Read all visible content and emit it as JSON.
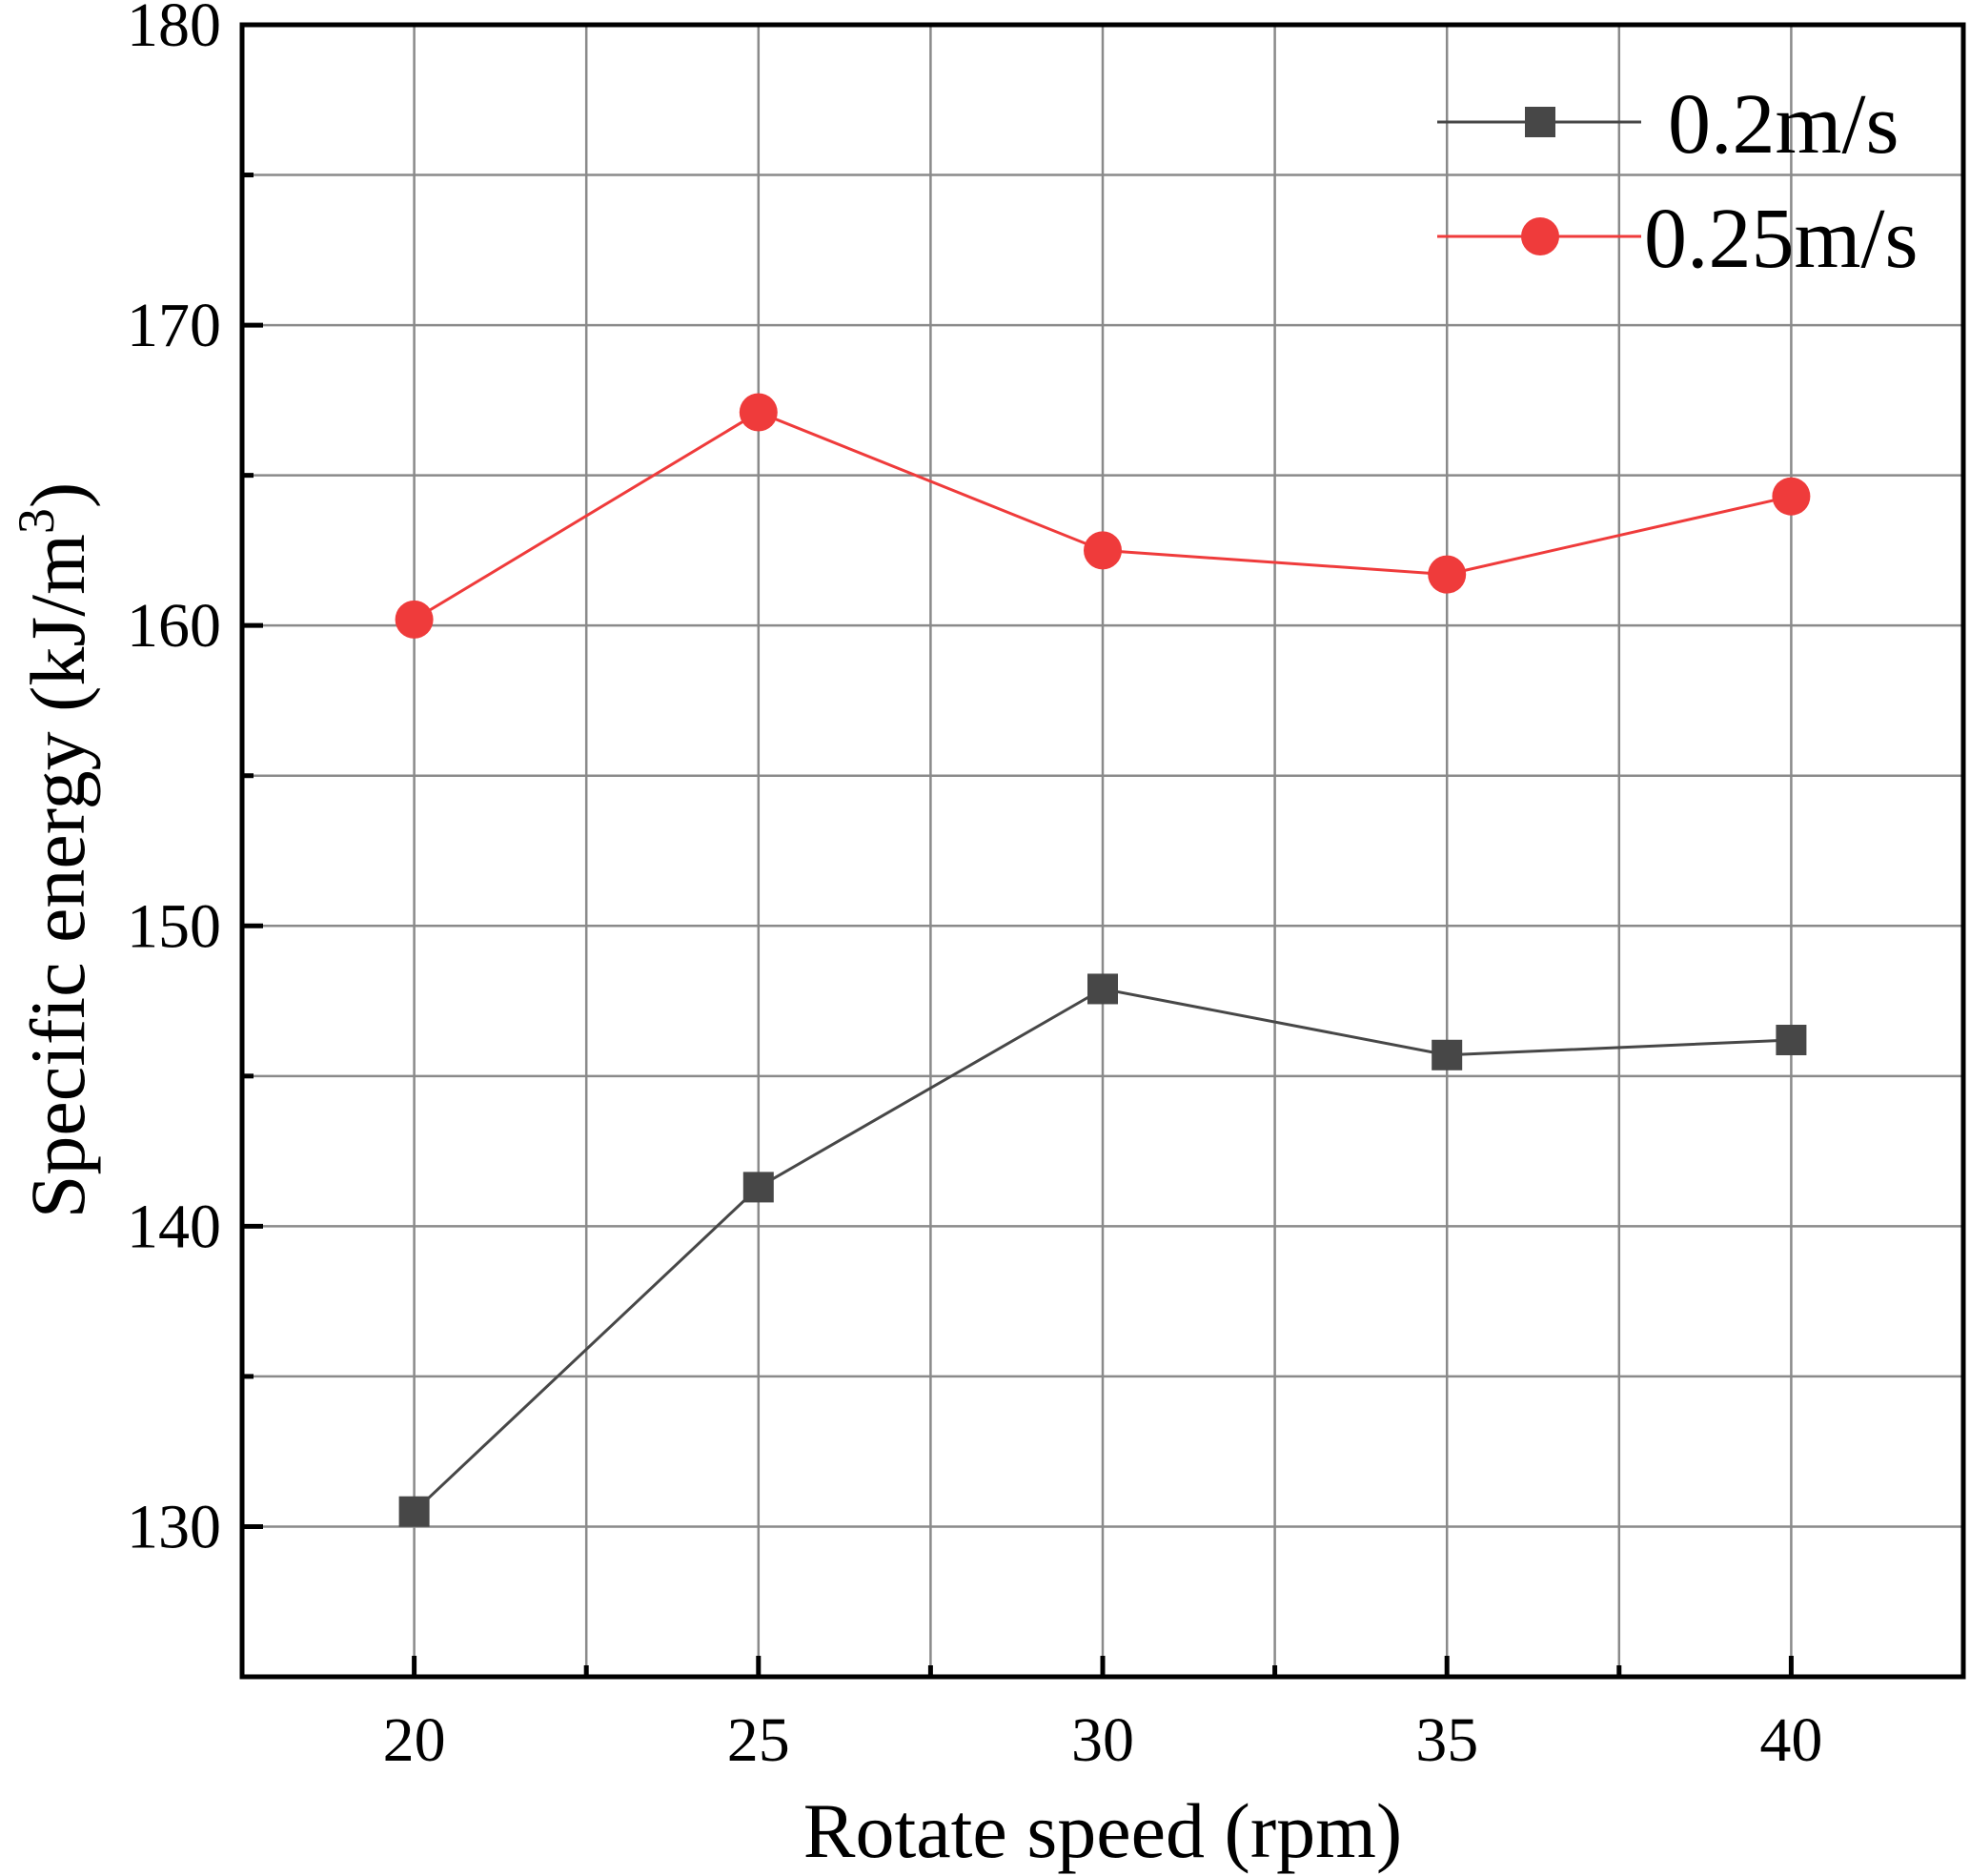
{
  "chart_data": {
    "type": "line",
    "title": "",
    "xlabel": "Rotate speed (rpm)",
    "ylabel": "Specific energy (kJ/m",
    "ylabel_sup": "3",
    "ylabel_end": ")",
    "xlim": [
      17.5,
      42.5
    ],
    "ylim": [
      125,
      180
    ],
    "xticks": [
      20,
      25,
      30,
      35,
      40
    ],
    "yticks": [
      130,
      140,
      150,
      160,
      170,
      180
    ],
    "grid": true,
    "legend_position": "top-right",
    "x": [
      20,
      25,
      30,
      35,
      40
    ],
    "series": [
      {
        "name": "0.2m/s",
        "color": "#474747",
        "marker": "square",
        "values": [
          130.5,
          141.3,
          147.9,
          145.7,
          146.2
        ]
      },
      {
        "name": "0.25m/s",
        "color": "#ef3b3b",
        "marker": "circle",
        "values": [
          160.2,
          167.1,
          162.5,
          161.7,
          164.3
        ]
      }
    ]
  }
}
